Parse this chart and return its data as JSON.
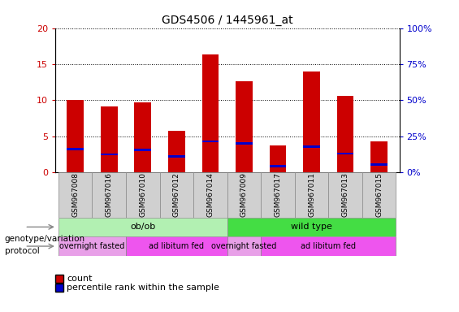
{
  "title": "GDS4506 / 1445961_at",
  "samples": [
    "GSM967008",
    "GSM967016",
    "GSM967010",
    "GSM967012",
    "GSM967014",
    "GSM967009",
    "GSM967017",
    "GSM967011",
    "GSM967013",
    "GSM967015"
  ],
  "count_values": [
    10.0,
    9.2,
    9.7,
    5.8,
    16.3,
    12.6,
    3.7,
    14.0,
    10.6,
    4.3
  ],
  "percentile_values": [
    3.2,
    2.5,
    3.1,
    2.2,
    4.3,
    4.0,
    0.9,
    3.6,
    2.6,
    1.1
  ],
  "count_color": "#cc0000",
  "percentile_color": "#0000cc",
  "ylim_left": [
    0,
    20
  ],
  "ylim_right": [
    0,
    100
  ],
  "yticks_left": [
    0,
    5,
    10,
    15,
    20
  ],
  "ytick_labels_left": [
    "0",
    "5",
    "10",
    "15",
    "20"
  ],
  "yticks_right": [
    0,
    25,
    50,
    75,
    100
  ],
  "ytick_labels_right": [
    "0%",
    "25%",
    "50%",
    "75%",
    "100%"
  ],
  "genotype_groups": [
    {
      "label": "ob/ob",
      "start": 0,
      "end": 5,
      "color": "#b2f0b2"
    },
    {
      "label": "wild type",
      "start": 5,
      "end": 10,
      "color": "#44dd44"
    }
  ],
  "protocol_groups": [
    {
      "label": "overnight fasted",
      "start": 0,
      "end": 2,
      "color": "#e8a0e8"
    },
    {
      "label": "ad libitum fed",
      "start": 2,
      "end": 5,
      "color": "#ee55ee"
    },
    {
      "label": "overnight fasted",
      "start": 5,
      "end": 6,
      "color": "#e8a0e8"
    },
    {
      "label": "ad libitum fed",
      "start": 6,
      "end": 10,
      "color": "#ee55ee"
    }
  ],
  "genotype_label": "genotype/variation",
  "protocol_label": "protocol",
  "legend_count": "count",
  "legend_percentile": "percentile rank within the sample",
  "bar_width": 0.5,
  "grid_color": "#000000",
  "tick_color_left": "#cc0000",
  "tick_color_right": "#0000cc",
  "bg_color": "#ffffff",
  "plot_bg": "#ffffff"
}
